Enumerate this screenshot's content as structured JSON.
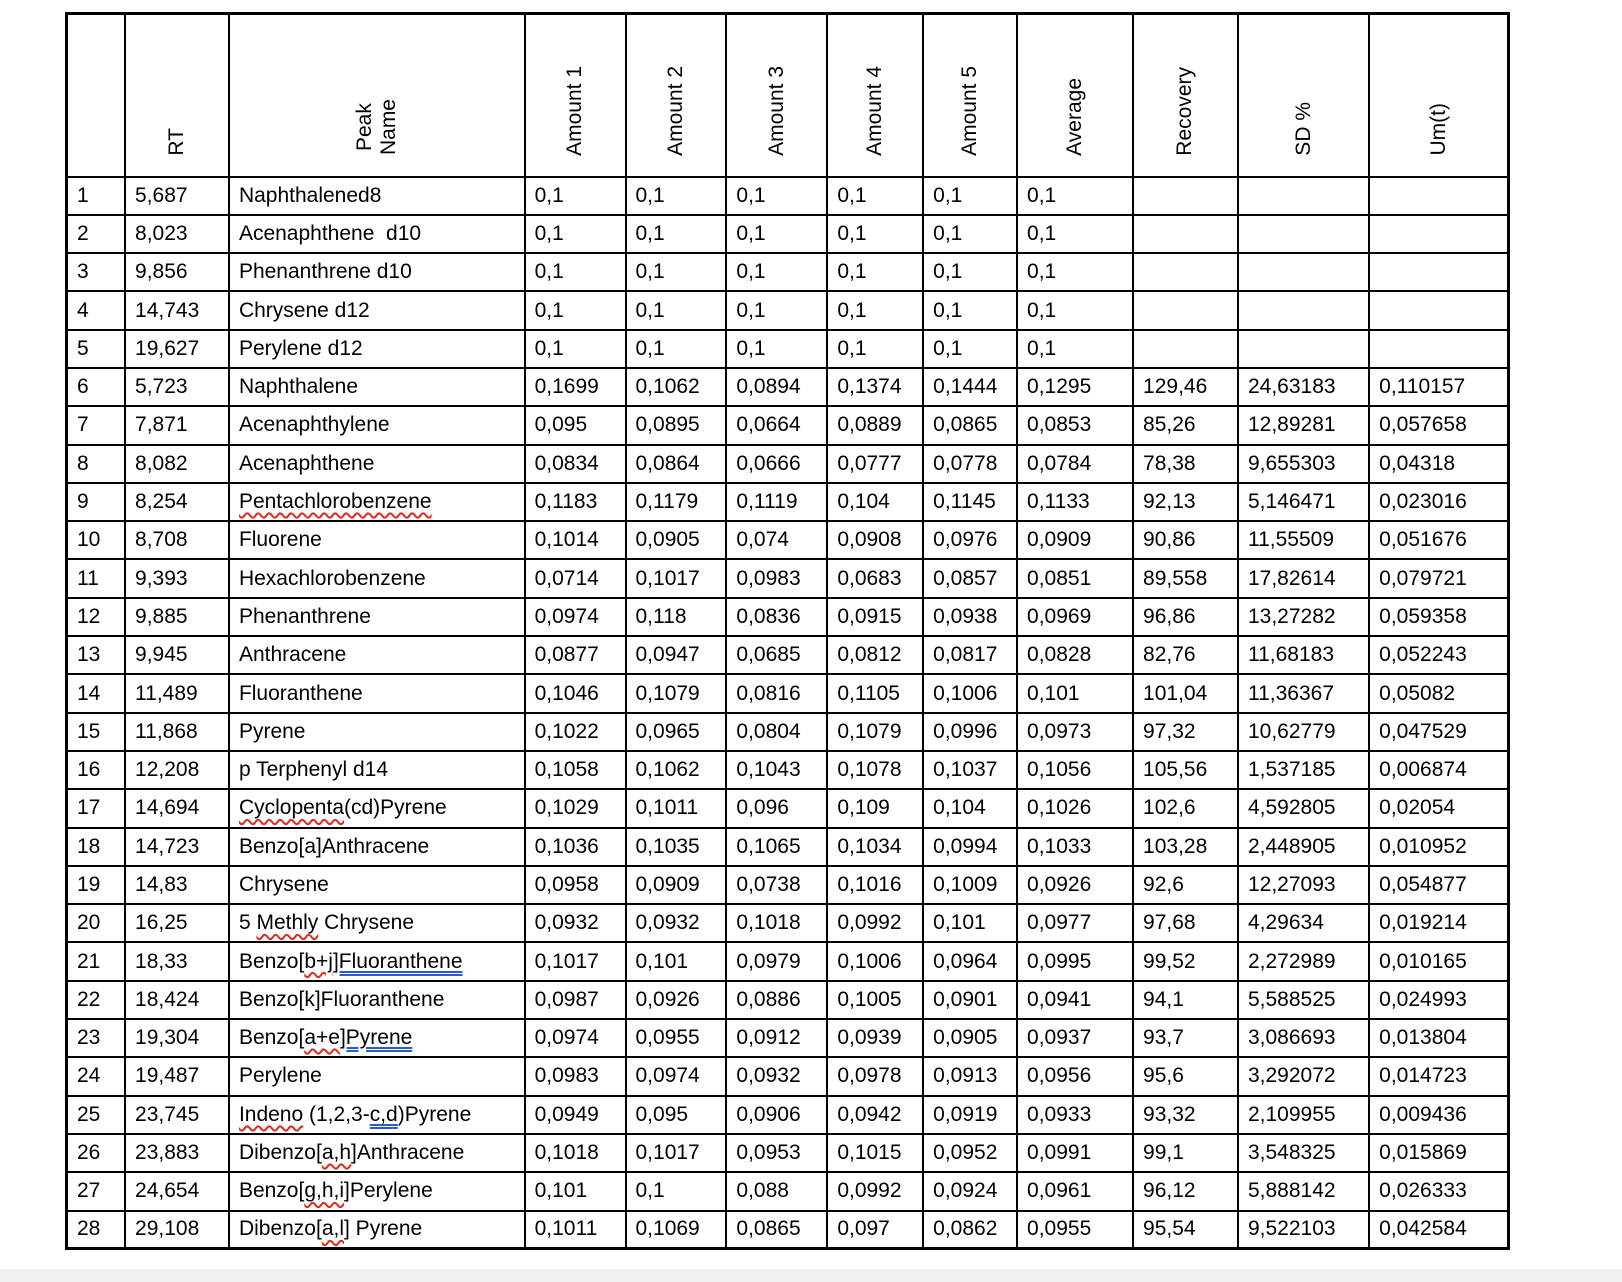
{
  "table": {
    "columns": [
      {
        "key": "idx",
        "label": ""
      },
      {
        "key": "rt",
        "label": "RT"
      },
      {
        "key": "name",
        "label": "Peak\nName"
      },
      {
        "key": "a1",
        "label": "Amount 1"
      },
      {
        "key": "a2",
        "label": "Amount 2"
      },
      {
        "key": "a3",
        "label": "Amount 3"
      },
      {
        "key": "a4",
        "label": "Amount 4"
      },
      {
        "key": "a5",
        "label": "Amount 5"
      },
      {
        "key": "avg",
        "label": "Average"
      },
      {
        "key": "rec",
        "label": "Recovery"
      },
      {
        "key": "sd",
        "label": "SD %"
      },
      {
        "key": "um",
        "label": "Um(t)"
      }
    ],
    "rows": [
      {
        "idx": "1",
        "rt": "5,687",
        "name": [
          {
            "t": "Naphthalened8"
          }
        ],
        "a1": "0,1",
        "a2": "0,1",
        "a3": "0,1",
        "a4": "0,1",
        "a5": "0,1",
        "avg": "0,1",
        "rec": "",
        "sd": "",
        "um": ""
      },
      {
        "idx": "2",
        "rt": "8,023",
        "name": [
          {
            "t": "Acenaphthene  d10"
          }
        ],
        "a1": "0,1",
        "a2": "0,1",
        "a3": "0,1",
        "a4": "0,1",
        "a5": "0,1",
        "avg": "0,1",
        "rec": "",
        "sd": "",
        "um": ""
      },
      {
        "idx": "3",
        "rt": "9,856",
        "name": [
          {
            "t": "Phenanthrene d10"
          }
        ],
        "a1": "0,1",
        "a2": "0,1",
        "a3": "0,1",
        "a4": "0,1",
        "a5": "0,1",
        "avg": "0,1",
        "rec": "",
        "sd": "",
        "um": ""
      },
      {
        "idx": "4",
        "rt": "14,743",
        "name": [
          {
            "t": "Chrysene d12"
          }
        ],
        "a1": "0,1",
        "a2": "0,1",
        "a3": "0,1",
        "a4": "0,1",
        "a5": "0,1",
        "avg": "0,1",
        "rec": "",
        "sd": "",
        "um": ""
      },
      {
        "idx": "5",
        "rt": "19,627",
        "name": [
          {
            "t": "Perylene d12"
          }
        ],
        "a1": "0,1",
        "a2": "0,1",
        "a3": "0,1",
        "a4": "0,1",
        "a5": "0,1",
        "avg": "0,1",
        "rec": "",
        "sd": "",
        "um": ""
      },
      {
        "idx": "6",
        "rt": "5,723",
        "name": [
          {
            "t": "Naphthalene"
          }
        ],
        "a1": "0,1699",
        "a2": "0,1062",
        "a3": "0,0894",
        "a4": "0,1374",
        "a5": "0,1444",
        "avg": "0,1295",
        "rec": "129,46",
        "sd": "24,63183",
        "um": "0,110157"
      },
      {
        "idx": "7",
        "rt": "7,871",
        "name": [
          {
            "t": "Acenaphthylene"
          }
        ],
        "a1": "0,095",
        "a2": "0,0895",
        "a3": "0,0664",
        "a4": "0,0889",
        "a5": "0,0865",
        "avg": "0,0853",
        "rec": "85,26",
        "sd": "12,89281",
        "um": "0,057658"
      },
      {
        "idx": "8",
        "rt": "8,082",
        "name": [
          {
            "t": "Acenaphthene"
          }
        ],
        "a1": "0,0834",
        "a2": "0,0864",
        "a3": "0,0666",
        "a4": "0,0777",
        "a5": "0,0778",
        "avg": "0,0784",
        "rec": "78,38",
        "sd": "9,655303",
        "um": "0,04318"
      },
      {
        "idx": "9",
        "rt": "8,254",
        "name": [
          {
            "t": "Pentachlorobenzene",
            "d": "red"
          }
        ],
        "a1": "0,1183",
        "a2": "0,1179",
        "a3": "0,1119",
        "a4": "0,104",
        "a5": "0,1145",
        "avg": "0,1133",
        "rec": "92,13",
        "sd": "5,146471",
        "um": "0,023016"
      },
      {
        "idx": "10",
        "rt": "8,708",
        "name": [
          {
            "t": "Fluorene"
          }
        ],
        "a1": "0,1014",
        "a2": "0,0905",
        "a3": "0,074",
        "a4": "0,0908",
        "a5": "0,0976",
        "avg": "0,0909",
        "rec": "90,86",
        "sd": "11,55509",
        "um": "0,051676"
      },
      {
        "idx": "11",
        "rt": "9,393",
        "name": [
          {
            "t": "Hexachlorobenzene"
          }
        ],
        "a1": "0,0714",
        "a2": "0,1017",
        "a3": "0,0983",
        "a4": "0,0683",
        "a5": "0,0857",
        "avg": "0,0851",
        "rec": "89,558",
        "sd": "17,82614",
        "um": "0,079721"
      },
      {
        "idx": "12",
        "rt": "9,885",
        "name": [
          {
            "t": "Phenanthrene"
          }
        ],
        "a1": "0,0974",
        "a2": "0,118",
        "a3": "0,0836",
        "a4": "0,0915",
        "a5": "0,0938",
        "avg": "0,0969",
        "rec": "96,86",
        "sd": "13,27282",
        "um": "0,059358"
      },
      {
        "idx": "13",
        "rt": "9,945",
        "name": [
          {
            "t": "Anthracene"
          }
        ],
        "a1": "0,0877",
        "a2": "0,0947",
        "a3": "0,0685",
        "a4": "0,0812",
        "a5": "0,0817",
        "avg": "0,0828",
        "rec": "82,76",
        "sd": "11,68183",
        "um": "0,052243"
      },
      {
        "idx": "14",
        "rt": "11,489",
        "name": [
          {
            "t": "Fluoranthene"
          }
        ],
        "a1": "0,1046",
        "a2": "0,1079",
        "a3": "0,0816",
        "a4": "0,1105",
        "a5": "0,1006",
        "avg": "0,101",
        "rec": "101,04",
        "sd": "11,36367",
        "um": "0,05082"
      },
      {
        "idx": "15",
        "rt": "11,868",
        "name": [
          {
            "t": "Pyrene"
          }
        ],
        "a1": "0,1022",
        "a2": "0,0965",
        "a3": "0,0804",
        "a4": "0,1079",
        "a5": "0,0996",
        "avg": "0,0973",
        "rec": "97,32",
        "sd": "10,62779",
        "um": "0,047529"
      },
      {
        "idx": "16",
        "rt": "12,208",
        "name": [
          {
            "t": "p Terphenyl d14"
          }
        ],
        "a1": "0,1058",
        "a2": "0,1062",
        "a3": "0,1043",
        "a4": "0,1078",
        "a5": "0,1037",
        "avg": "0,1056",
        "rec": "105,56",
        "sd": "1,537185",
        "um": "0,006874"
      },
      {
        "idx": "17",
        "rt": "14,694",
        "name": [
          {
            "t": "Cyclopenta",
            "d": "red"
          },
          {
            "t": "(cd)Pyrene"
          }
        ],
        "a1": "0,1029",
        "a2": "0,1011",
        "a3": "0,096",
        "a4": "0,109",
        "a5": "0,104",
        "avg": "0,1026",
        "rec": "102,6",
        "sd": "4,592805",
        "um": "0,02054"
      },
      {
        "idx": "18",
        "rt": "14,723",
        "name": [
          {
            "t": "Benzo[a]Anthracene"
          }
        ],
        "a1": "0,1036",
        "a2": "0,1035",
        "a3": "0,1065",
        "a4": "0,1034",
        "a5": "0,0994",
        "avg": "0,1033",
        "rec": "103,28",
        "sd": "2,448905",
        "um": "0,010952"
      },
      {
        "idx": "19",
        "rt": "14,83",
        "name": [
          {
            "t": "Chrysene"
          }
        ],
        "a1": "0,0958",
        "a2": "0,0909",
        "a3": "0,0738",
        "a4": "0,1016",
        "a5": "0,1009",
        "avg": "0,0926",
        "rec": "92,6",
        "sd": "12,27093",
        "um": "0,054877"
      },
      {
        "idx": "20",
        "rt": "16,25",
        "name": [
          {
            "t": "5 "
          },
          {
            "t": "Methly",
            "d": "red"
          },
          {
            "t": " Chrysene"
          }
        ],
        "a1": "0,0932",
        "a2": "0,0932",
        "a3": "0,1018",
        "a4": "0,0992",
        "a5": "0,101",
        "avg": "0,0977",
        "rec": "97,68",
        "sd": "4,29634",
        "um": "0,019214"
      },
      {
        "idx": "21",
        "rt": "18,33",
        "name": [
          {
            "t": "Benzo["
          },
          {
            "t": "b+j",
            "d": "red"
          },
          {
            "t": "]Fluoranthene",
            "d": "blue"
          }
        ],
        "a1": "0,1017",
        "a2": "0,101",
        "a3": "0,0979",
        "a4": "0,1006",
        "a5": "0,0964",
        "avg": "0,0995",
        "rec": "99,52",
        "sd": "2,272989",
        "um": "0,010165"
      },
      {
        "idx": "22",
        "rt": "18,424",
        "name": [
          {
            "t": "Benzo[k]Fluoranthene"
          }
        ],
        "a1": "0,0987",
        "a2": "0,0926",
        "a3": "0,0886",
        "a4": "0,1005",
        "a5": "0,0901",
        "avg": "0,0941",
        "rec": "94,1",
        "sd": "5,588525",
        "um": "0,024993"
      },
      {
        "idx": "23",
        "rt": "19,304",
        "name": [
          {
            "t": "Benzo["
          },
          {
            "t": "a+e",
            "d": "red"
          },
          {
            "t": "]Pyrene",
            "d": "blue"
          }
        ],
        "a1": "0,0974",
        "a2": "0,0955",
        "a3": "0,0912",
        "a4": "0,0939",
        "a5": "0,0905",
        "avg": "0,0937",
        "rec": "93,7",
        "sd": "3,086693",
        "um": "0,013804"
      },
      {
        "idx": "24",
        "rt": "19,487",
        "name": [
          {
            "t": "Perylene"
          }
        ],
        "a1": "0,0983",
        "a2": "0,0974",
        "a3": "0,0932",
        "a4": "0,0978",
        "a5": "0,0913",
        "avg": "0,0956",
        "rec": "95,6",
        "sd": "3,292072",
        "um": "0,014723"
      },
      {
        "idx": "25",
        "rt": "23,745",
        "name": [
          {
            "t": "Indeno",
            "d": "red"
          },
          {
            "t": " (1,2,3-"
          },
          {
            "t": "c,d",
            "d": "blue"
          },
          {
            "t": ")Pyrene"
          }
        ],
        "a1": "0,0949",
        "a2": "0,095",
        "a3": "0,0906",
        "a4": "0,0942",
        "a5": "0,0919",
        "avg": "0,0933",
        "rec": "93,32",
        "sd": "2,109955",
        "um": "0,009436"
      },
      {
        "idx": "26",
        "rt": "23,883",
        "name": [
          {
            "t": "Dibenzo["
          },
          {
            "t": "a,h",
            "d": "red"
          },
          {
            "t": "]Anthracene"
          }
        ],
        "a1": "0,1018",
        "a2": "0,1017",
        "a3": "0,0953",
        "a4": "0,1015",
        "a5": "0,0952",
        "avg": "0,0991",
        "rec": "99,1",
        "sd": "3,548325",
        "um": "0,015869"
      },
      {
        "idx": "27",
        "rt": "24,654",
        "name": [
          {
            "t": "Benzo["
          },
          {
            "t": "g,h,i",
            "d": "red"
          },
          {
            "t": "]Perylene"
          }
        ],
        "a1": "0,101",
        "a2": "0,1",
        "a3": "0,088",
        "a4": "0,0992",
        "a5": "0,0924",
        "avg": "0,0961",
        "rec": "96,12",
        "sd": "5,888142",
        "um": "0,026333"
      },
      {
        "idx": "28",
        "rt": "29,108",
        "name": [
          {
            "t": "Dibenzo["
          },
          {
            "t": "a,l",
            "d": "red"
          },
          {
            "t": "] Pyrene"
          }
        ],
        "a1": "0,1011",
        "a2": "0,1069",
        "a3": "0,0865",
        "a4": "0,097",
        "a5": "0,0862",
        "avg": "0,0955",
        "rec": "95,54",
        "sd": "9,522103",
        "um": "0,042584"
      }
    ]
  },
  "colors": {
    "border": "#000000",
    "spellcheck_red": "#e02b20",
    "grammar_blue": "#2e5bcc",
    "bottom_bar": "#f1f1f1",
    "background": "#ffffff"
  }
}
